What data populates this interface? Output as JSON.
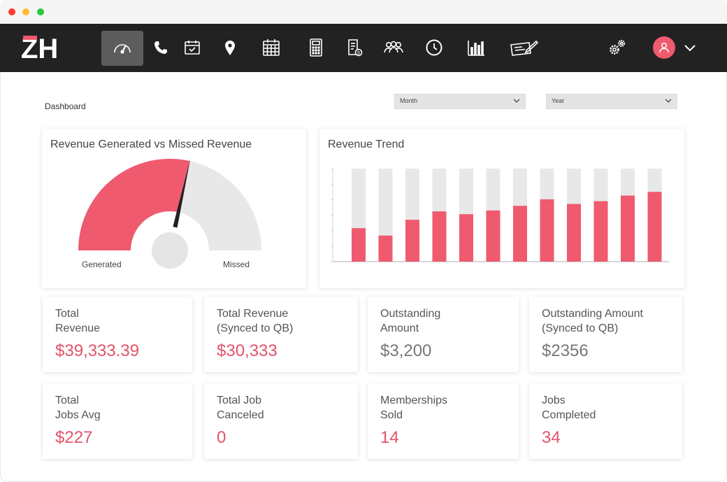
{
  "window": {
    "dots": [
      "#ff3b30",
      "#ffbd2e",
      "#28c840"
    ]
  },
  "navbar": {
    "logo": "ZH",
    "icons": [
      "dashboard-gauge-icon",
      "phone-icon",
      "calendar-check-icon",
      "location-pin-icon",
      "calendar-grid-icon",
      "calculator-icon",
      "invoice-icon",
      "team-icon",
      "clock-icon",
      "bar-chart-icon",
      "check-payment-icon",
      "settings-gears-icon",
      "user-avatar-icon",
      "chevron-down-icon"
    ]
  },
  "header": {
    "title": "Dashboard",
    "month_select": "Month",
    "year_select": "Year"
  },
  "gauge": {
    "title": "Revenue Generated vs Missed Revenue",
    "generated_label": "Generated",
    "missed_label": "Missed",
    "generated_fraction": 0.57
  },
  "chart_data": {
    "type": "bar",
    "title": "Revenue Trend",
    "categories": [
      "",
      "",
      "",
      "",
      "",
      "",
      "",
      "",
      "",
      "",
      "",
      ""
    ],
    "series": [
      {
        "values": [
          36,
          28,
          45,
          54,
          51,
          55,
          60,
          67,
          62,
          65,
          71,
          75
        ]
      },
      {
        "values": [
          100,
          100,
          100,
          100,
          100,
          100,
          100,
          100,
          100,
          100,
          100,
          100
        ]
      }
    ],
    "ylim": [
      0,
      100
    ],
    "grid": false
  },
  "stats": [
    {
      "label": "Total\nRevenue",
      "value": "$39,333.39",
      "color": "red"
    },
    {
      "label": "Total Revenue\n(Synced to QB)",
      "value": "$30,333",
      "color": "red"
    },
    {
      "label": "Outstanding\nAmount",
      "value": "$3,200",
      "color": "grey"
    },
    {
      "label": "Outstanding Amount\n(Synced to QB)",
      "value": "$2356",
      "color": "grey"
    },
    {
      "label": "Total\nJobs Avg",
      "value": "$227",
      "color": "red"
    },
    {
      "label": "Total Job\nCanceled",
      "value": "0",
      "color": "red"
    },
    {
      "label": "Memberships\nSold",
      "value": "14",
      "color": "red"
    },
    {
      "label": "Jobs\nCompleted",
      "value": "34",
      "color": "red"
    }
  ],
  "colors": {
    "accent": "#ef5a6f",
    "navbar": "#222222",
    "track": "#e8e8e8"
  }
}
